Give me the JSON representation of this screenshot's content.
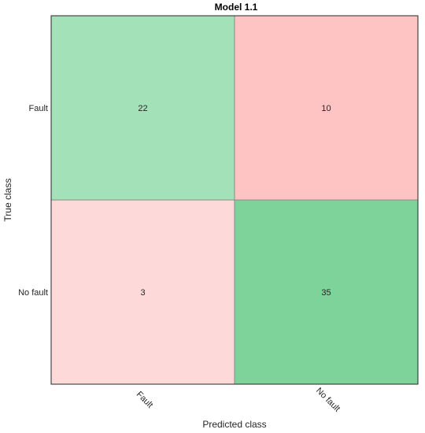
{
  "chart_data": {
    "type": "heatmap",
    "title": "Model 1.1",
    "xlabel": "Predicted class",
    "ylabel": "True class",
    "x_categories": [
      "Fault",
      "No fault"
    ],
    "y_categories": [
      "Fault",
      "No fault"
    ],
    "values": [
      [
        22,
        10
      ],
      [
        3,
        35
      ]
    ],
    "cell_colors": [
      [
        "#a3e1b8",
        "#fec4c4"
      ],
      [
        "#fdd9d9",
        "#7dd39a"
      ]
    ],
    "grid": false
  }
}
